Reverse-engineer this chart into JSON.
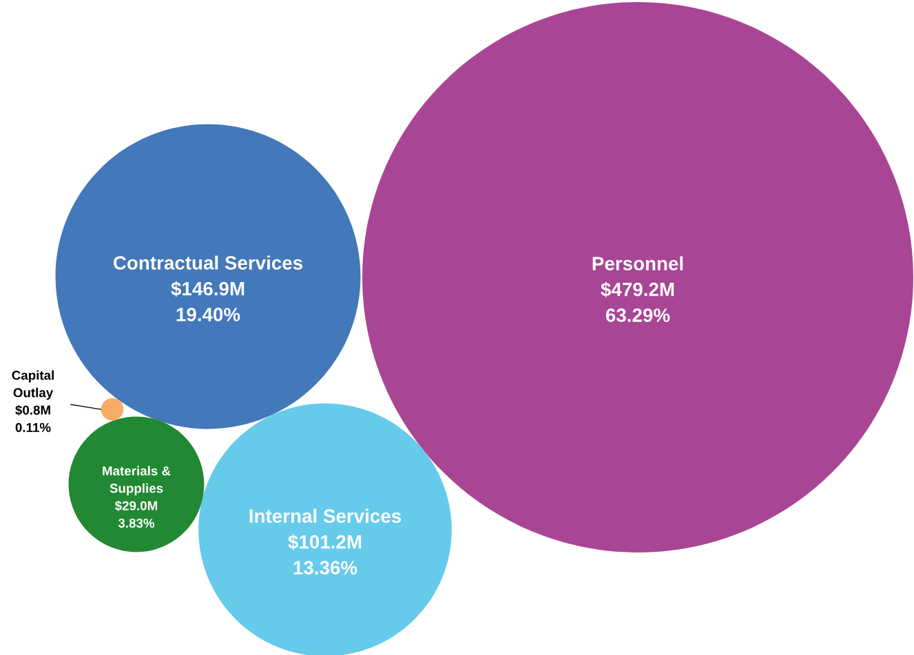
{
  "chart_data": {
    "type": "other",
    "categories": [
      "Personnel",
      "Contractual Services",
      "Internal Services",
      "Materials &\nSupplies",
      "Capital\nOutlay"
    ],
    "values": [
      479.2,
      146.9,
      101.2,
      29.0,
      0.8
    ],
    "value_labels": [
      "$479.2M",
      "$146.9M",
      "$101.2M",
      "$29.0M",
      "$0.8M"
    ],
    "annotations": [
      "63.29%",
      "19.40%",
      "13.36%",
      "3.83%",
      "0.11%"
    ],
    "colors": [
      "#a94595",
      "#4378bb",
      "#66cbeb",
      "#228833",
      "#f8ad66"
    ]
  }
}
